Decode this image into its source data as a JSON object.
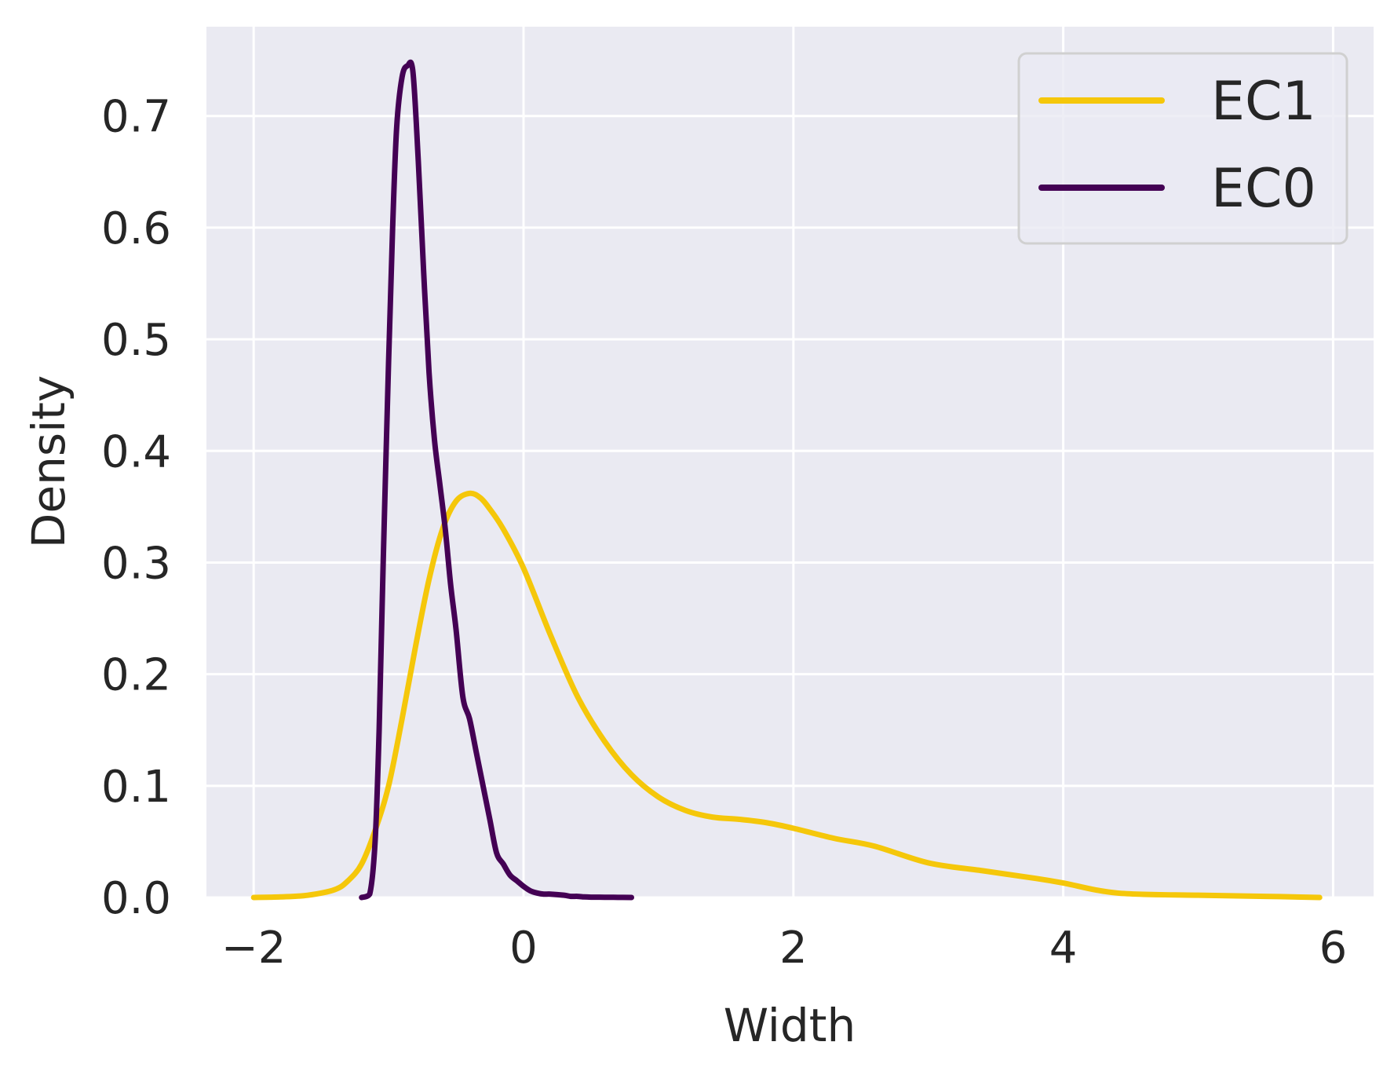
{
  "chart_data": {
    "type": "line",
    "title": "",
    "xlabel": "Width",
    "ylabel": "Density",
    "xlim": [
      -2.35,
      6.3
    ],
    "ylim": [
      0.0,
      0.78
    ],
    "xticks": [
      -2,
      0,
      2,
      4,
      6
    ],
    "xtick_labels": [
      "−2",
      "0",
      "2",
      "4",
      "6"
    ],
    "yticks": [
      0.0,
      0.1,
      0.2,
      0.3,
      0.4,
      0.5,
      0.6,
      0.7
    ],
    "ytick_labels": [
      "0.0",
      "0.1",
      "0.2",
      "0.3",
      "0.4",
      "0.5",
      "0.6",
      "0.7"
    ],
    "grid": true,
    "legend_position": "top-right",
    "background": "#eaeaf2",
    "series": [
      {
        "name": "EC1",
        "color": "#f5c70a",
        "x": [
          -2.0,
          -1.8,
          -1.6,
          -1.4,
          -1.3,
          -1.2,
          -1.1,
          -1.0,
          -0.9,
          -0.8,
          -0.7,
          -0.6,
          -0.5,
          -0.4,
          -0.32,
          -0.25,
          -0.15,
          0.0,
          0.2,
          0.4,
          0.6,
          0.8,
          1.0,
          1.2,
          1.4,
          1.6,
          1.8,
          2.0,
          2.3,
          2.6,
          3.0,
          3.4,
          3.8,
          4.0,
          4.4,
          5.0,
          5.5,
          5.9
        ],
        "y": [
          0.0,
          0.0005,
          0.002,
          0.007,
          0.015,
          0.03,
          0.06,
          0.1,
          0.16,
          0.225,
          0.285,
          0.33,
          0.355,
          0.362,
          0.358,
          0.348,
          0.33,
          0.295,
          0.235,
          0.18,
          0.14,
          0.11,
          0.09,
          0.078,
          0.072,
          0.07,
          0.067,
          0.062,
          0.053,
          0.046,
          0.031,
          0.024,
          0.017,
          0.013,
          0.004,
          0.002,
          0.001,
          0.0
        ]
      },
      {
        "name": "EC0",
        "color": "#440154",
        "x": [
          -1.2,
          -1.14,
          -1.1,
          -1.07,
          -1.04,
          -1.0,
          -0.97,
          -0.94,
          -0.9,
          -0.86,
          -0.82,
          -0.78,
          -0.74,
          -0.7,
          -0.66,
          -0.62,
          -0.58,
          -0.54,
          -0.5,
          -0.45,
          -0.4,
          -0.35,
          -0.3,
          -0.25,
          -0.2,
          -0.15,
          -0.1,
          -0.05,
          0.0,
          0.05,
          0.1,
          0.15,
          0.2,
          0.3,
          0.35,
          0.4,
          0.45,
          0.5,
          0.6,
          0.7,
          0.8
        ],
        "y": [
          0.0,
          0.003,
          0.05,
          0.15,
          0.3,
          0.48,
          0.6,
          0.69,
          0.735,
          0.745,
          0.74,
          0.66,
          0.56,
          0.47,
          0.41,
          0.37,
          0.33,
          0.28,
          0.24,
          0.18,
          0.16,
          0.13,
          0.1,
          0.07,
          0.04,
          0.03,
          0.02,
          0.015,
          0.01,
          0.006,
          0.004,
          0.003,
          0.003,
          0.002,
          0.001,
          0.001,
          0.0005,
          0.0003,
          0.0002,
          0.0001,
          0.0
        ]
      }
    ],
    "legend_order": [
      "EC1",
      "EC0"
    ]
  }
}
